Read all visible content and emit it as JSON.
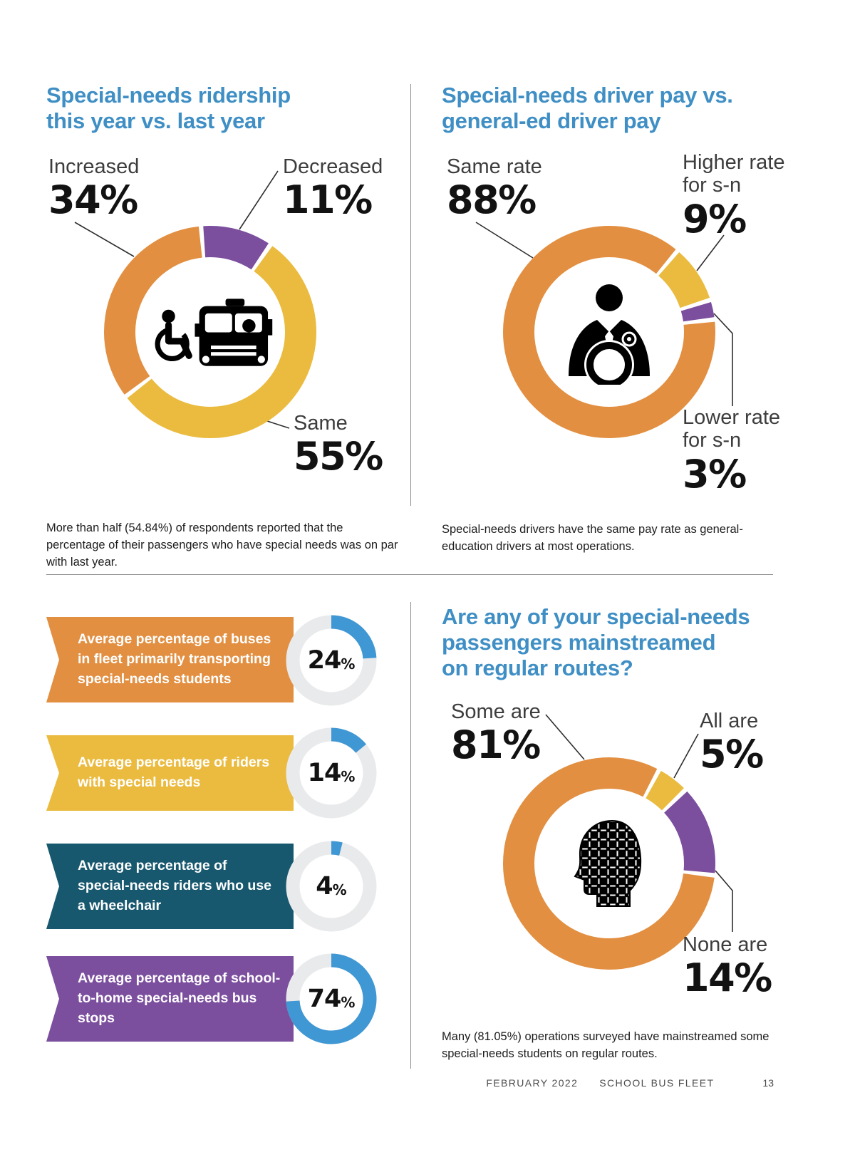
{
  "colors": {
    "heading": "#3F8FC5",
    "orange": "#E28F41",
    "yellow": "#EABB3F",
    "purple": "#7B4E9E",
    "teal": "#18586F",
    "blue": "#3F97D3",
    "track": "#E9EAEC"
  },
  "chart_data": [
    {
      "id": "ridership-donut",
      "type": "pie",
      "title": "Special-needs ridership\nthis year vs. last year",
      "rotate": -5,
      "segments": [
        {
          "label": "Decreased",
          "display": "11%",
          "value": 11,
          "color": "purple"
        },
        {
          "label": "Same",
          "display": "55%",
          "value": 55,
          "color": "yellow"
        },
        {
          "label": "Increased",
          "display": "34%",
          "value": 34,
          "color": "orange"
        }
      ],
      "center_icon": "wheelchair-and-school-bus",
      "caption": "More than half (54.84%) of respondents reported that the percentage of their passengers who have special needs was on par with last year."
    },
    {
      "id": "driver-pay-donut",
      "type": "pie",
      "title": "Special-needs driver pay vs.\ngeneral-ed driver pay",
      "rotate": 40,
      "segments": [
        {
          "label": "Higher rate for s-n",
          "display": "9%",
          "value": 9,
          "color": "yellow"
        },
        {
          "label": "Lower rate for s-n",
          "display": "3%",
          "value": 3,
          "color": "purple"
        },
        {
          "label": "Same rate",
          "display": "88%",
          "value": 88,
          "color": "orange"
        }
      ],
      "center_icon": "bus-driver",
      "caption": "Special-needs drivers have the same pay rate as general-education drivers at most operations."
    },
    {
      "id": "mainstreamed-donut",
      "type": "pie",
      "title": "Are any of your special-needs\npassengers mainstreamed\non regular routes?",
      "rotate": 28,
      "segments": [
        {
          "label": "All are",
          "display": "5%",
          "value": 5,
          "color": "yellow"
        },
        {
          "label": "None are",
          "display": "14%",
          "value": 14,
          "color": "purple"
        },
        {
          "label": "Some are",
          "display": "81%",
          "value": 81,
          "color": "orange"
        }
      ],
      "center_icon": "puzzle-head",
      "caption": "Many (81.05%) operations surveyed have mainstreamed some special-needs students on regular routes."
    },
    {
      "id": "fleet-average-gauges",
      "type": "pie",
      "items": [
        {
          "label": "Average percentage of buses in fleet primarily transporting special-needs students",
          "value": 24,
          "display": "24",
          "unit": "%",
          "ribbon_color": "orange"
        },
        {
          "label": "Average percentage of riders with special needs",
          "value": 14,
          "display": "14",
          "unit": "%",
          "ribbon_color": "yellow"
        },
        {
          "label": "Average percentage of special-needs riders who use a wheelchair",
          "value": 4,
          "display": "4",
          "unit": "%",
          "ribbon_color": "teal"
        },
        {
          "label": "Average percentage of school-to-home special-needs bus stops",
          "value": 74,
          "display": "74",
          "unit": "%",
          "ribbon_color": "purple"
        }
      ]
    }
  ],
  "footer": {
    "date": "FEBRUARY 2022",
    "publication": "SCHOOL BUS FLEET",
    "page_number": "13"
  }
}
